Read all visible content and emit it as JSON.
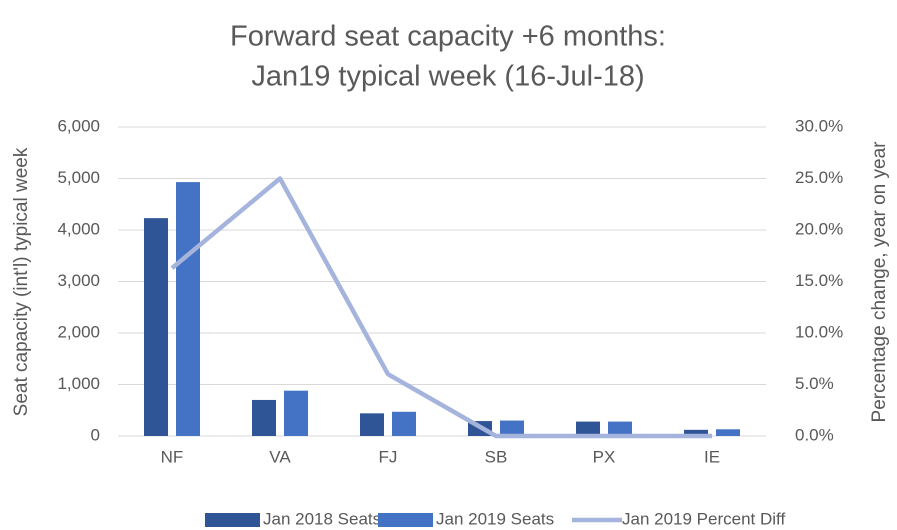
{
  "chart_data": {
    "type": "bar",
    "title": [
      "Forward seat capacity +6 months:",
      "Jan19 typical week (16-Jul-18)"
    ],
    "ylabel": "Seat capacity (int'l) typical week",
    "y2label": "Percentage change, year on year",
    "categories": [
      "NF",
      "VA",
      "FJ",
      "SB",
      "PX",
      "IE"
    ],
    "series": [
      {
        "name": "Jan 2018 Seats",
        "color": "#2f5597",
        "values": [
          4230,
          700,
          440,
          290,
          280,
          120
        ]
      },
      {
        "name": "Jan 2019 Seats",
        "color": "#4472c4",
        "values": [
          4930,
          880,
          470,
          300,
          280,
          130
        ]
      },
      {
        "name": "Jan 2019 Percent Diff",
        "color": "#a5b4dc",
        "type": "line",
        "axis": "y2",
        "values": [
          16.3,
          25.0,
          6.0,
          0,
          0,
          0
        ]
      }
    ],
    "ylim": [
      0,
      6000
    ],
    "yticks": [
      0,
      {
        "value": 1000,
        "label": "1,000"
      },
      {
        "value": 2000,
        "label": "2,000"
      },
      {
        "value": 3000,
        "label": "3,000"
      },
      {
        "value": 4000,
        "label": "4,000"
      },
      {
        "value": 5000,
        "label": "5,000"
      },
      {
        "value": 6000,
        "label": "6,000"
      }
    ],
    "y2lim": [
      0,
      30
    ],
    "y2ticks": [
      {
        "value": 0,
        "label": "0.0%"
      },
      {
        "value": 5,
        "label": "5.0%"
      },
      {
        "value": 10,
        "label": "10.0%"
      },
      {
        "value": 15,
        "label": "15.0%"
      },
      {
        "value": 20,
        "label": "20.0%"
      },
      {
        "value": 25,
        "label": "25.0%"
      },
      {
        "value": 30,
        "label": "30.0%"
      }
    ],
    "grid": true,
    "legend": "bottom"
  }
}
